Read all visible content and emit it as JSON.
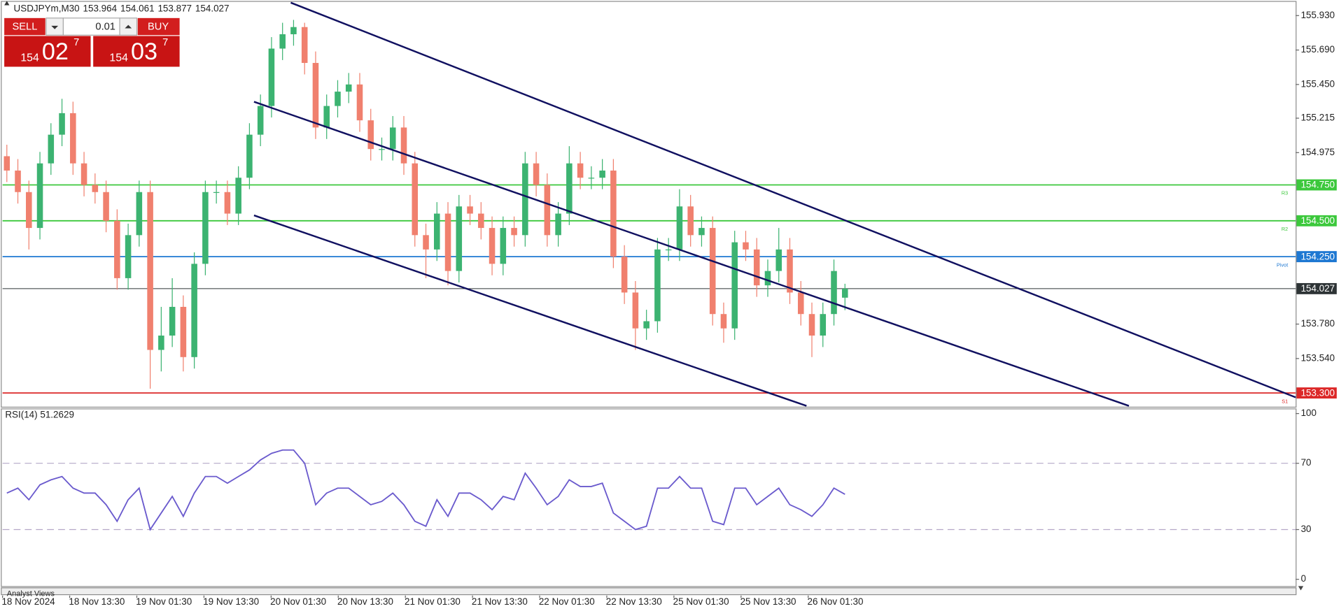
{
  "header": {
    "symbol": "USDJPYm,M30",
    "ohlc": [
      153.964,
      154.061,
      153.877,
      154.027
    ]
  },
  "trade_panel": {
    "sell": "SELL",
    "buy": "BUY",
    "lot": "0.01",
    "bid": {
      "big": "154",
      "pips": "02",
      "point": "7"
    },
    "ask": {
      "big": "154",
      "pips": "03",
      "point": "7"
    }
  },
  "chart_data": {
    "type": "candlestick",
    "ylim": [
      153.21,
      156.02
    ],
    "yticks": [
      {
        "value": 155.93,
        "label": "155.930"
      },
      {
        "value": 155.69,
        "label": "155.690"
      },
      {
        "value": 155.45,
        "label": "155.450"
      },
      155.215,
      154.975,
      {
        "value": 153.78,
        "label": "153.780"
      },
      {
        "value": 153.54,
        "label": "153.540"
      }
    ],
    "levels": [
      {
        "value": 154.75,
        "label": "154.750",
        "tag": "R3",
        "color": "#3cc83c"
      },
      {
        "value": 154.5,
        "label": "154.500",
        "tag": "R2",
        "color": "#3cc83c"
      },
      {
        "value": 154.25,
        "label": "154.250",
        "tag": "Pivot",
        "color": "#1e78d2"
      },
      {
        "value": 153.3,
        "label": "153.300",
        "tag": "S1",
        "color": "#dc2828"
      }
    ],
    "current": {
      "value": 154.027,
      "label": "154.027",
      "color": "#2e3436"
    },
    "color_up": "#3cb371",
    "color_down": "#f0806e",
    "candles": {
      "open": [
        154.95,
        154.85,
        154.7,
        154.45,
        154.9,
        155.1,
        155.25,
        154.9,
        154.75,
        154.7,
        154.5,
        154.1,
        154.4,
        154.7,
        153.6,
        153.7,
        153.9,
        153.55,
        154.2,
        154.7,
        154.7,
        154.55,
        154.8,
        155.1,
        155.3,
        155.7,
        155.8,
        155.85,
        155.6,
        155.15,
        155.3,
        155.4,
        155.45,
        155.2,
        155.0,
        155.0,
        155.15,
        154.9,
        154.4,
        154.3,
        154.55,
        154.15,
        154.6,
        154.55,
        154.45,
        154.2,
        154.45,
        154.4,
        154.9,
        154.75,
        154.4,
        154.55,
        154.9,
        154.8,
        154.8,
        154.85,
        154.25,
        154.0,
        153.75,
        153.8,
        154.3,
        154.3,
        154.6,
        154.4,
        154.45,
        153.85,
        153.75,
        154.35,
        154.3,
        154.05,
        154.15,
        154.3,
        154.0,
        153.85,
        153.7,
        153.85,
        153.964
      ],
      "high": [
        155.03,
        154.93,
        154.78,
        154.98,
        155.18,
        155.35,
        155.33,
        154.98,
        154.83,
        154.78,
        154.58,
        154.48,
        154.78,
        154.78,
        153.9,
        154.1,
        153.98,
        154.28,
        154.78,
        154.78,
        154.78,
        154.88,
        155.18,
        155.38,
        155.78,
        155.88,
        155.9,
        155.88,
        155.68,
        155.38,
        155.48,
        155.53,
        155.53,
        155.28,
        155.08,
        155.23,
        155.23,
        154.98,
        154.48,
        154.63,
        154.63,
        154.68,
        154.68,
        154.63,
        154.53,
        154.53,
        154.53,
        154.98,
        154.98,
        154.83,
        154.63,
        155.02,
        154.98,
        154.88,
        154.93,
        154.93,
        154.33,
        154.08,
        153.88,
        154.38,
        154.38,
        154.72,
        154.68,
        154.53,
        154.53,
        153.93,
        154.43,
        154.43,
        154.38,
        154.23,
        154.45,
        154.38,
        154.08,
        153.93,
        153.93,
        154.23,
        154.061
      ],
      "low": [
        154.77,
        154.62,
        154.3,
        154.37,
        154.82,
        155.02,
        154.82,
        154.67,
        154.62,
        154.42,
        154.02,
        154.02,
        154.32,
        153.33,
        153.45,
        153.62,
        153.45,
        153.47,
        154.12,
        154.62,
        154.47,
        154.47,
        154.72,
        155.02,
        155.22,
        155.62,
        155.72,
        155.52,
        155.07,
        155.07,
        155.22,
        155.32,
        155.12,
        154.92,
        154.92,
        154.92,
        154.82,
        154.32,
        154.1,
        154.22,
        154.05,
        154.07,
        154.47,
        154.37,
        154.12,
        154.12,
        154.32,
        154.32,
        154.67,
        154.32,
        154.32,
        154.47,
        154.72,
        154.72,
        154.72,
        154.17,
        153.92,
        153.6,
        153.67,
        153.72,
        154.22,
        154.22,
        154.32,
        154.32,
        153.77,
        153.65,
        153.67,
        154.22,
        153.97,
        153.97,
        154.07,
        153.92,
        153.77,
        153.55,
        153.62,
        153.77,
        153.877
      ],
      "close": [
        154.85,
        154.7,
        154.45,
        154.9,
        155.1,
        155.25,
        154.9,
        154.75,
        154.7,
        154.5,
        154.1,
        154.4,
        154.7,
        153.6,
        153.7,
        153.9,
        153.55,
        154.2,
        154.7,
        154.7,
        154.55,
        154.8,
        155.1,
        155.3,
        155.7,
        155.8,
        155.85,
        155.6,
        155.15,
        155.3,
        155.4,
        155.45,
        155.2,
        155.0,
        155.0,
        155.15,
        154.9,
        154.4,
        154.3,
        154.55,
        154.15,
        154.6,
        154.55,
        154.45,
        154.2,
        154.45,
        154.4,
        154.9,
        154.75,
        154.4,
        154.55,
        154.9,
        154.8,
        154.8,
        154.85,
        154.25,
        154.0,
        153.75,
        153.8,
        154.3,
        154.3,
        154.6,
        154.4,
        154.45,
        153.85,
        153.75,
        154.35,
        154.3,
        154.05,
        154.15,
        154.3,
        154.0,
        153.85,
        153.7,
        153.85,
        154.15,
        154.027
      ]
    },
    "x_labels": [
      "18 Nov 2024",
      "18 Nov 13:30",
      "19 Nov 01:30",
      "19 Nov 13:30",
      "20 Nov 01:30",
      "20 Nov 13:30",
      "21 Nov 01:30",
      "21 Nov 13:30",
      "22 Nov 01:30",
      "22 Nov 13:30",
      "25 Nov 01:30",
      "25 Nov 13:30",
      "26 Nov 01:30"
    ]
  },
  "rsi": {
    "title": "RSI(14) 51.2629",
    "ylim": [
      0,
      100
    ],
    "yticks": [
      100,
      70,
      30,
      0
    ],
    "levels": [
      70,
      30
    ],
    "color": "#6a5acd",
    "values": [
      52,
      55,
      48,
      57,
      60,
      62,
      55,
      52,
      52,
      45,
      35,
      48,
      55,
      30,
      40,
      50,
      38,
      52,
      62,
      62,
      58,
      62,
      66,
      72,
      76,
      78,
      78,
      70,
      45,
      52,
      55,
      55,
      50,
      45,
      47,
      52,
      45,
      35,
      32,
      48,
      38,
      52,
      52,
      48,
      42,
      50,
      48,
      64,
      55,
      45,
      50,
      60,
      56,
      56,
      58,
      40,
      35,
      30,
      32,
      55,
      55,
      62,
      55,
      55,
      35,
      33,
      55,
      55,
      45,
      50,
      55,
      45,
      42,
      38,
      45,
      55,
      51.2629
    ]
  },
  "footer": "Analyst Views"
}
